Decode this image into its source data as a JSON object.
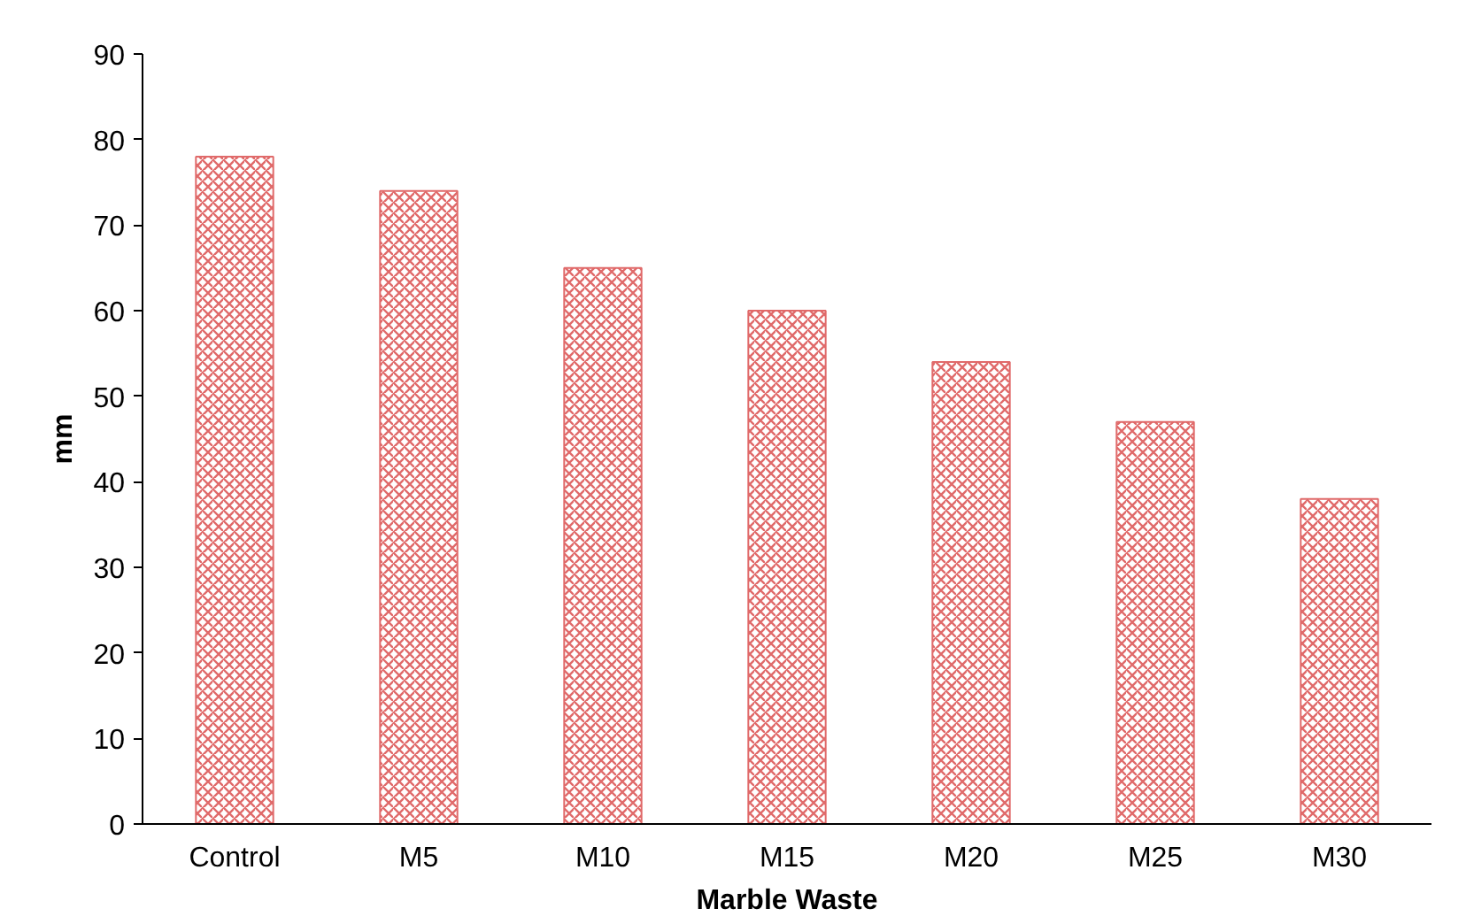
{
  "chart_data": {
    "type": "bar",
    "xlabel": "Marble Waste",
    "ylabel": "mm",
    "categories": [
      "Control",
      "M5",
      "M10",
      "M15",
      "M20",
      "M25",
      "M30"
    ],
    "values": [
      78,
      74,
      65,
      60,
      54,
      47,
      38
    ],
    "color": "#e06a6a",
    "ylim": [
      0,
      90
    ],
    "yticks": [
      0,
      10,
      20,
      30,
      40,
      50,
      60,
      70,
      80,
      90
    ],
    "grid": false
  }
}
